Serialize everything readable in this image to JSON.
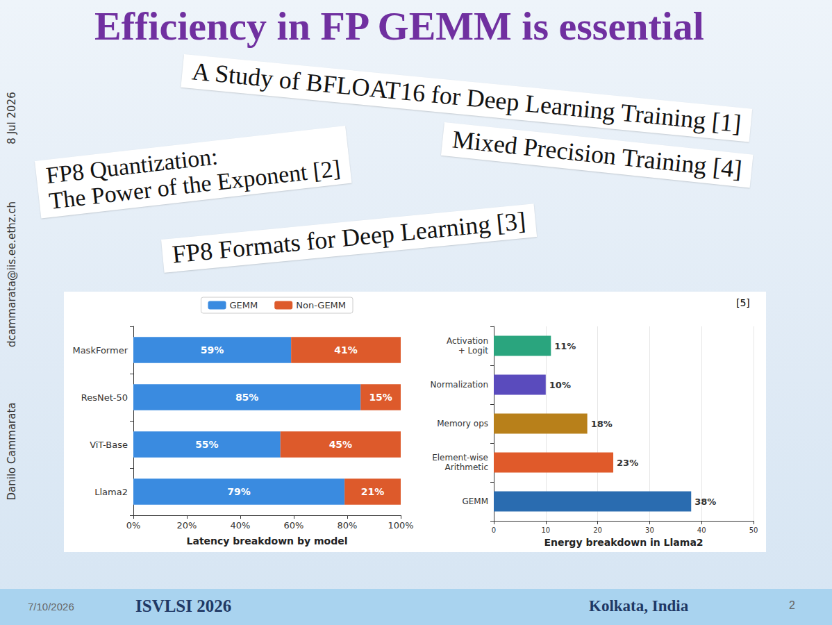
{
  "slide": {
    "title": "Efficiency in FP GEMM is essential",
    "paper_titles": [
      {
        "lines": [
          "A Study of BFLOAT16 for Deep Learning Training [1]"
        ]
      },
      {
        "lines": [
          "FP8 Quantization:",
          "The Power of the Exponent [2]"
        ]
      },
      {
        "lines": [
          "FP8 Formats for Deep Learning [3]"
        ]
      },
      {
        "lines": [
          "Mixed Precision Training [4]"
        ]
      }
    ],
    "side_texts": [
      "8 Jul 2026",
      "dcammarata@iis.ee.ethz.ch",
      "Danilo Cammarata"
    ],
    "reference": "[5]",
    "footer": {
      "date": "7/10/2026",
      "conference": "ISVLSI 2026",
      "location": "Kolkata, India",
      "page": 2
    }
  },
  "chart_data": [
    {
      "type": "bar",
      "orientation": "horizontal",
      "stacked": true,
      "xlabel": "Latency breakdown by model",
      "categories": [
        "MaskFormer",
        "ResNet-50",
        "ViT-Base",
        "Llama2"
      ],
      "series": [
        {
          "name": "GEMM",
          "color": "#3a8be0",
          "values": [
            59,
            85,
            55,
            79
          ],
          "value_labels": [
            "59%",
            "85%",
            "55%",
            "79%"
          ]
        },
        {
          "name": "Non-GEMM",
          "color": "#dd5a2b",
          "values": [
            41,
            15,
            45,
            21
          ],
          "value_labels": [
            "41%",
            "15%",
            "45%",
            "21%"
          ]
        }
      ],
      "xlim": [
        0,
        100
      ],
      "xticks": [
        {
          "value": 0,
          "label": "0%"
        },
        {
          "value": 20,
          "label": "20%"
        },
        {
          "value": 40,
          "label": "40%"
        },
        {
          "value": 60,
          "label": "60%"
        },
        {
          "value": 80,
          "label": "80%"
        },
        {
          "value": 100,
          "label": "100%"
        }
      ],
      "legend": "top",
      "data_labels": true,
      "grid": false
    },
    {
      "type": "bar",
      "orientation": "horizontal",
      "xlabel": "Energy breakdown in Llama2",
      "categories": [
        "Activation + Logit",
        "Normalization",
        "Memory ops",
        "Element-wise Arithmetic",
        "GEMM"
      ],
      "values": [
        11,
        10,
        18,
        23,
        38
      ],
      "value_labels": [
        "11%",
        "10%",
        "18%",
        "23%",
        "38%"
      ],
      "colors": [
        "#2aa57e",
        "#5a4bbd",
        "#b8801a",
        "#e05a2a",
        "#2a6cb0"
      ],
      "xlim": [
        0,
        50
      ],
      "xticks": [
        0,
        10,
        20,
        30,
        40,
        50
      ],
      "data_labels": true,
      "grid": true
    }
  ]
}
